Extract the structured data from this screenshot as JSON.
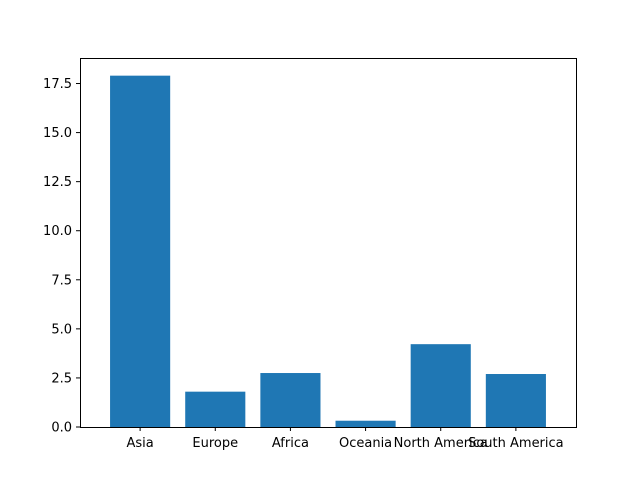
{
  "chart_data": {
    "type": "bar",
    "categories": [
      "Asia",
      "Europe",
      "Africa",
      "Oceania",
      "North America",
      "South America"
    ],
    "values": [
      17.9,
      1.8,
      2.75,
      0.32,
      4.22,
      2.7
    ],
    "ylim": [
      0,
      18.8
    ],
    "yticks": [
      0.0,
      2.5,
      5.0,
      7.5,
      10.0,
      12.5,
      15.0,
      17.5
    ],
    "ytick_labels": [
      "0.0",
      "2.5",
      "5.0",
      "7.5",
      "10.0",
      "12.5",
      "15.0",
      "17.5"
    ],
    "bar_color": "#1f77b4",
    "grid": false
  }
}
